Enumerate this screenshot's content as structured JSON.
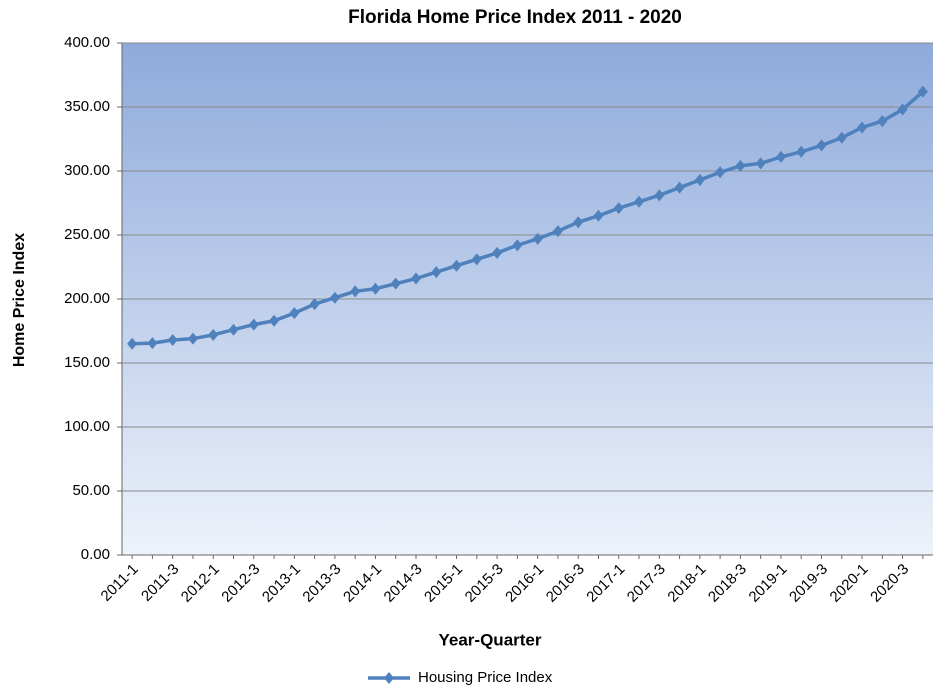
{
  "chart_data": {
    "type": "line",
    "title": "Florida Home Price Index 2011 - 2020",
    "xlabel": "Year-Quarter",
    "ylabel": "Home Price Index",
    "categories": [
      "2011-1",
      null,
      "2011-3",
      null,
      "2012-1",
      null,
      "2012-3",
      null,
      "2013-1",
      null,
      "2013-3",
      null,
      "2014-1",
      null,
      "2014-3",
      null,
      "2015-1",
      null,
      "2015-3",
      null,
      "2016-1",
      null,
      "2016-3",
      null,
      "2017-1",
      null,
      "2017-3",
      null,
      "2018-1",
      null,
      "2018-3",
      null,
      "2019-1",
      null,
      "2019-3",
      null,
      "2020-1",
      null,
      "2020-3",
      null
    ],
    "series": [
      {
        "name": "Housing Price Index",
        "color": "#4f81bd",
        "values": [
          165,
          165.5,
          168,
          169,
          172,
          176,
          180,
          183,
          189,
          196,
          201,
          206,
          208,
          212,
          216,
          221,
          226,
          231,
          236,
          242,
          247,
          253,
          260,
          265,
          271,
          276,
          281,
          287,
          293,
          299,
          304,
          306,
          311,
          315,
          320,
          326,
          334,
          339,
          348,
          362
        ]
      }
    ],
    "ylim": [
      0,
      400
    ],
    "yticks": [
      {
        "value": 0,
        "label": "0.00"
      },
      {
        "value": 50,
        "label": "50.00"
      },
      {
        "value": 100,
        "label": "100.00"
      },
      {
        "value": 150,
        "label": "150.00"
      },
      {
        "value": 200,
        "label": "200.00"
      },
      {
        "value": 250,
        "label": "250.00"
      },
      {
        "value": 300,
        "label": "300.00"
      },
      {
        "value": 350,
        "label": "350.00"
      },
      {
        "value": 400,
        "label": "400.00"
      }
    ],
    "grid": true,
    "legend": "bottom"
  }
}
